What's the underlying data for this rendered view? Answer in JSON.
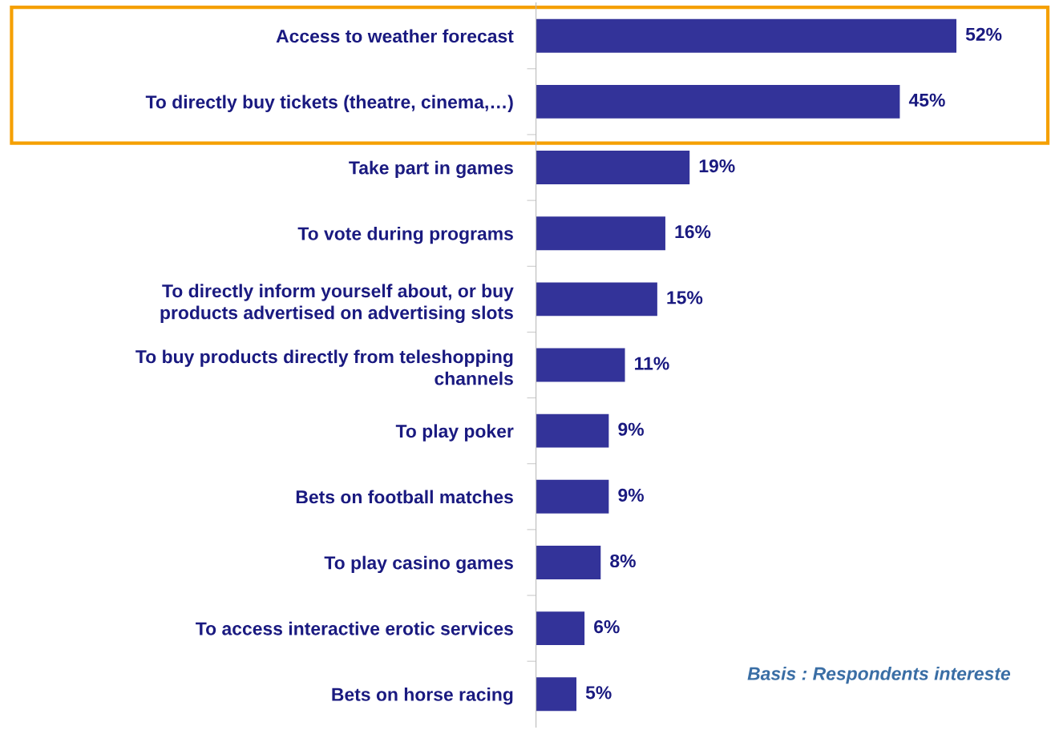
{
  "chart_data": {
    "type": "bar",
    "orientation": "horizontal",
    "categories": [
      "Access to weather forecast",
      "To directly buy tickets (theatre, cinema,…)",
      "Take part in games",
      "To vote during programs",
      "To directly inform yourself about, or buy products advertised on advertising slots",
      "To buy products directly from teleshopping channels",
      "To play poker",
      "Bets on football matches",
      "To play casino games",
      "To access interactive erotic services",
      "Bets on horse racing"
    ],
    "values": [
      52,
      45,
      19,
      16,
      15,
      11,
      9,
      9,
      8,
      6,
      5
    ],
    "value_labels": [
      "52%",
      "45%",
      "19%",
      "16%",
      "15%",
      "11%",
      "9%",
      "9%",
      "8%",
      "6%",
      "5%"
    ],
    "color": "#333399",
    "annotations": [
      "Basis : Respondents intereste"
    ],
    "grid": false,
    "legend": false
  }
}
